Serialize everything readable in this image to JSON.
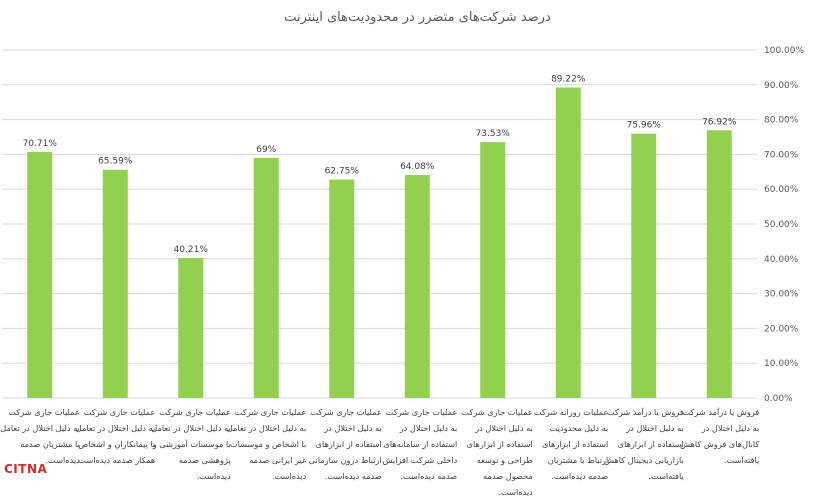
{
  "chart_data": {
    "type": "bar",
    "title": "درصد شرکت‌های متضرر در محدودیت‌های اینترنت",
    "categories": [
      "عملیات جاری شرکت به دلیل اختلال در تعامل با مشتریان صدمه دیده‌است.",
      "عملیات جاری شرکت به دلیل اختلال در تعامل با پیمانکاران و اشخاص همکار صدمه دیده‌است.",
      "عملیات جاری شرکت به دلیل اختلال در تعامل با موسسات آموزشی و پژوهشی صدمه دیده‌است.",
      "عملیات جاری شرکت به دلیل اختلال در تعامل با اشخاص و موسسات غیر ایرانی صدمه دیده‌است.",
      "عملیات جاری شرکت به دلیل اختلال در استفاده از ابزارهای ارتباط درون سازمانی صدمه دیده‌است.",
      "عملیات جاری شرکت به دلیل اختلال در استفاده از سامانه‌های داخلی شرکت افزایش صدمه دیده‌است.",
      "عملیات جاری شرکت به دلیل اختلال در استفاده از ابزارهای طراحی و توسعه محصول صدمه دیده‌است.",
      "عملیات روزانه شرکت به دلیل محدودیت استفاده از ابزارهای ارتباط با مشتریان صدمه دیده‌است.",
      "فروش یا درآمد شرکت به دلیل اختلال در استفاده از ابزارهای بازاریابی دیجیتال کاهش یافته‌است.",
      "فروش یا درآمد شرکت به دلیل اختلال در کانال‌های فروش کاهش یافته‌است."
    ],
    "values": [
      70.71,
      65.59,
      40.21,
      69,
      62.75,
      64.08,
      73.53,
      89.22,
      75.96,
      76.92
    ],
    "data_labels": [
      "70.71%",
      "65.59%",
      "40.21%",
      "69%",
      "62.75%",
      "64.08%",
      "73.53%",
      "89.22%",
      "75.96%",
      "76.92%"
    ],
    "ylim": [
      0,
      100
    ],
    "yticks": [
      "0.00%",
      "10.00%",
      "20.00%",
      "30.00%",
      "40.00%",
      "50.00%",
      "60.00%",
      "70.00%",
      "80.00%",
      "90.00%",
      "100.00%"
    ],
    "y_axis_side": "right",
    "grid": true,
    "bar_color": "#92d050",
    "grid_color": "#d9d9d9",
    "xlabel": "",
    "ylabel": ""
  },
  "branding": {
    "logo_text": "CITNA"
  }
}
